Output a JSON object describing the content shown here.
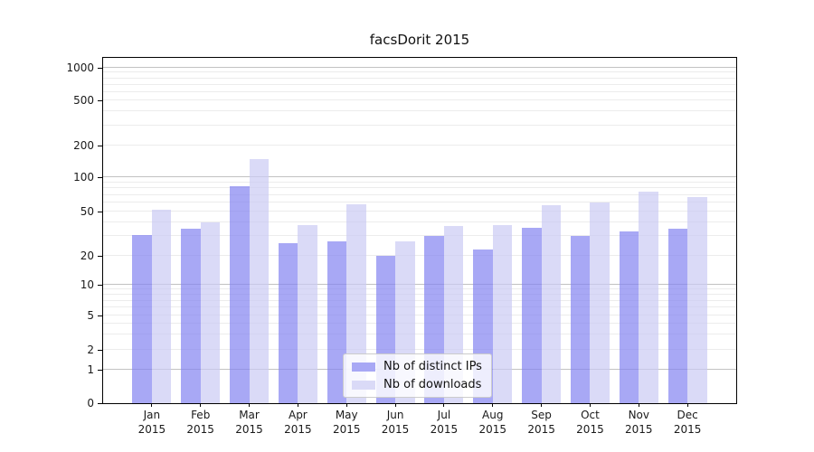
{
  "title": "facsDorit 2015",
  "chart_data": {
    "type": "bar",
    "title": "facsDorit 2015",
    "categories": [
      "Jan",
      "Feb",
      "Mar",
      "Apr",
      "May",
      "Jun",
      "Jul",
      "Aug",
      "Sep",
      "Oct",
      "Nov",
      "Dec"
    ],
    "category_year": "2015",
    "series": [
      {
        "name": "Nb of distinct IPs",
        "bar_color": "rgba(131,131,241,0.7)",
        "legend_color": "#a8a8f5",
        "values": [
          31,
          35,
          83,
          26,
          27,
          20,
          30,
          23,
          36,
          30,
          33,
          35
        ]
      },
      {
        "name": "Nb of downloads",
        "bar_color": "rgba(202,202,244,0.7)",
        "legend_color": "#dadaf7",
        "values": [
          52,
          40,
          150,
          38,
          58,
          27,
          37,
          38,
          57,
          60,
          75,
          67
        ]
      }
    ],
    "xlabel": "",
    "ylabel": "",
    "y_ticks": [
      0,
      1,
      2,
      5,
      10,
      20,
      50,
      100,
      200,
      500,
      1000
    ],
    "y_major_gridlines": [
      1,
      10,
      100,
      1000
    ],
    "y_minor_gridlines": [
      2,
      3,
      4,
      5,
      6,
      7,
      8,
      9,
      20,
      30,
      40,
      50,
      60,
      70,
      80,
      90,
      200,
      300,
      400,
      500,
      600,
      700,
      800,
      900
    ],
    "y_scale": "log-like (0 at baseline)",
    "ylim": [
      0,
      1300
    ],
    "grid": true,
    "legend_position": "lower center"
  }
}
